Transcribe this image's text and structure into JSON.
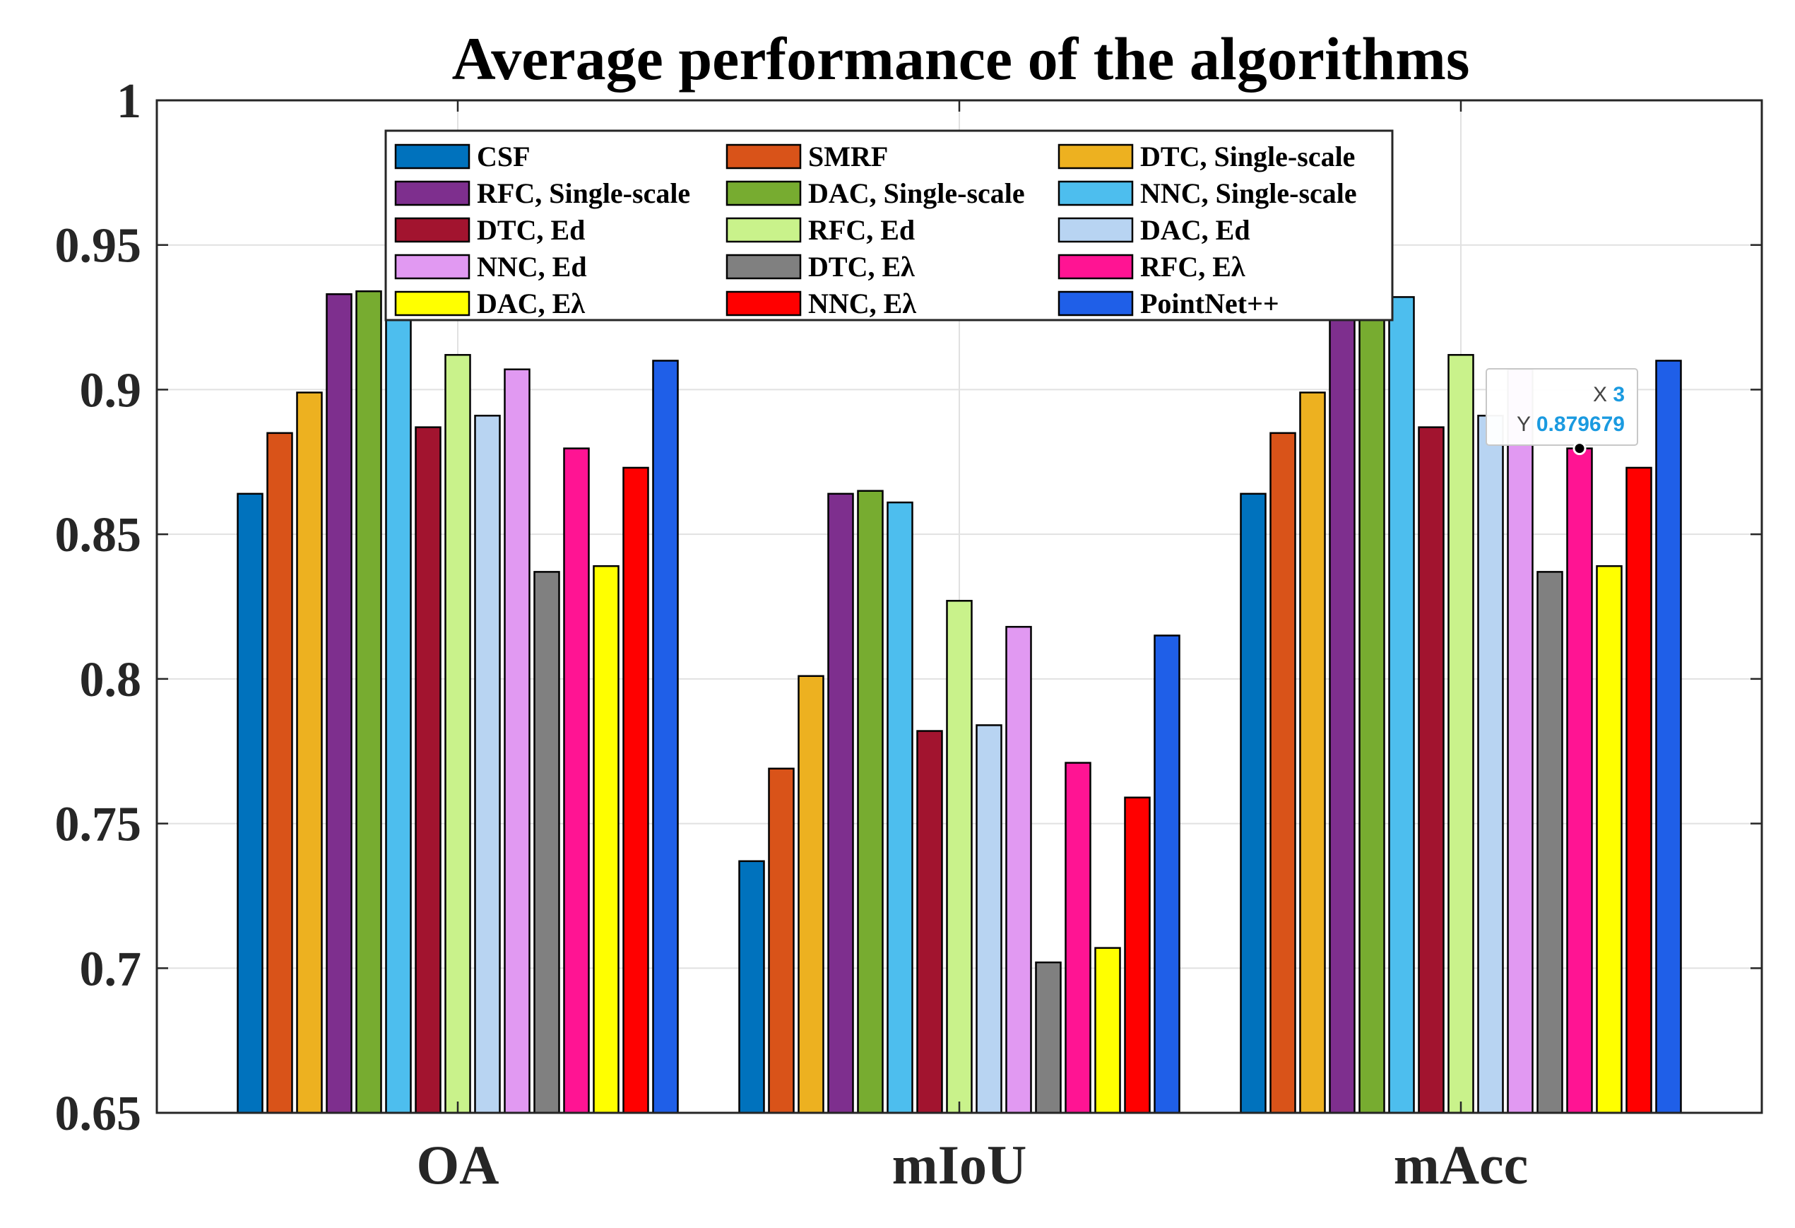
{
  "chart_data": {
    "type": "bar",
    "title": "Average performance of the algorithms",
    "xlabel": "",
    "ylabel": "",
    "categories": [
      "OA",
      "mIoU",
      "mAcc"
    ],
    "ylim": [
      0.65,
      1
    ],
    "yticks": [
      "0.65",
      "0.7",
      "0.75",
      "0.8",
      "0.85",
      "0.9",
      "0.95",
      "1"
    ],
    "grid": true,
    "legend_position": "top",
    "series": [
      {
        "name": "CSF",
        "color": "#0072BD",
        "values": [
          0.864,
          0.737,
          0.864
        ]
      },
      {
        "name": "SMRF",
        "color": "#D95319",
        "values": [
          0.885,
          0.769,
          0.885
        ]
      },
      {
        "name": "DTC, Single-scale",
        "color": "#EDB120",
        "values": [
          0.899,
          0.801,
          0.899
        ]
      },
      {
        "name": "RFC, Single-scale",
        "color": "#7E2F8E",
        "values": [
          0.933,
          0.864,
          0.933
        ]
      },
      {
        "name": "DAC, Single-scale",
        "color": "#77AC30",
        "values": [
          0.934,
          0.865,
          0.934
        ]
      },
      {
        "name": "NNC, Single-scale",
        "color": "#4DBEEE",
        "values": [
          0.932,
          0.861,
          0.932
        ]
      },
      {
        "name": "DTC, Ed",
        "color": "#A2142F",
        "values": [
          0.887,
          0.782,
          0.887
        ]
      },
      {
        "name": "RFC, Ed",
        "color": "#C9F28B",
        "values": [
          0.912,
          0.827,
          0.912
        ]
      },
      {
        "name": "DAC, Ed",
        "color": "#B8D4F2",
        "values": [
          0.891,
          0.784,
          0.891
        ]
      },
      {
        "name": "NNC, Ed",
        "color": "#E199F2",
        "values": [
          0.907,
          0.818,
          0.907
        ]
      },
      {
        "name": "DTC, Eλ",
        "color": "#808080",
        "values": [
          0.837,
          0.702,
          0.837
        ]
      },
      {
        "name": "RFC, Eλ",
        "color": "#FF1493",
        "values": [
          0.879679,
          0.771,
          0.879679
        ]
      },
      {
        "name": "DAC, Eλ",
        "color": "#FFFF00",
        "values": [
          0.839,
          0.707,
          0.839
        ]
      },
      {
        "name": "NNC, Eλ",
        "color": "#FF0000",
        "values": [
          0.873,
          0.759,
          0.873
        ]
      },
      {
        "name": "PointNet++",
        "color": "#1F5FE8",
        "values": [
          0.91,
          0.815,
          0.91
        ]
      }
    ],
    "datatip": {
      "x_label": "X",
      "x_value": "3",
      "y_label": "Y",
      "y_value": "0.879679",
      "series_index": 11,
      "category_index": 2,
      "value_color": "#1a9ae0"
    }
  }
}
